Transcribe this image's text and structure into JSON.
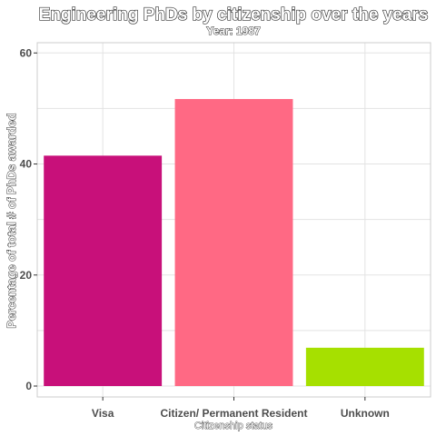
{
  "chart_data": {
    "type": "bar",
    "title": "Engineering PhDs by citizenship over the years",
    "subtitle": "Year: 1987",
    "xlabel": "Citizenship status",
    "ylabel": "Percentage of total # of PhDs awarded",
    "categories": [
      "Visa",
      "Citizen/ Permanent Resident",
      "Unknown"
    ],
    "values": [
      41.5,
      51.7,
      6.9
    ],
    "colors": [
      "#c8107a",
      "#ff6984",
      "#a6e000"
    ],
    "ylim": [
      0,
      60
    ],
    "yticks": [
      0,
      20,
      40,
      60
    ],
    "grid": true,
    "legend": "none"
  }
}
